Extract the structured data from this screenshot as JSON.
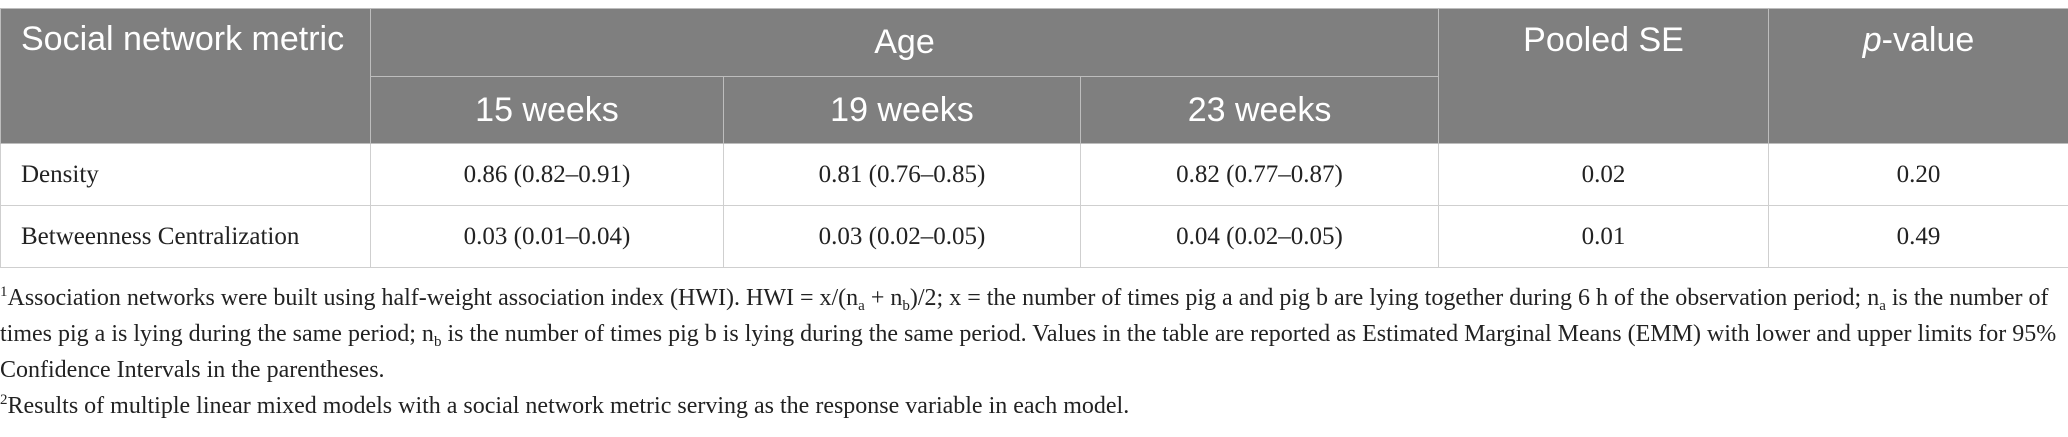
{
  "table": {
    "headers": {
      "metric": "Social network metric",
      "age": "Age",
      "weeks": [
        "15 weeks",
        "19 weeks",
        "23 weeks"
      ],
      "pooled_se": "Pooled SE",
      "pvalue_p": "p",
      "pvalue_rest": "-value"
    },
    "rows": [
      {
        "metric": "Density",
        "w15": "0.86 (0.82–0.91)",
        "w19": "0.81 (0.76–0.85)",
        "w23": "0.82 (0.77–0.87)",
        "se": "0.02",
        "p": "0.20"
      },
      {
        "metric": "Betweenness Centralization",
        "w15": "0.03 (0.01–0.04)",
        "w19": "0.03 (0.02–0.05)",
        "w23": "0.04 (0.02–0.05)",
        "se": "0.01",
        "p": "0.49"
      }
    ]
  },
  "footnotes": {
    "n1": {
      "mark": "1",
      "t1": "Association networks were built using half-weight association index (HWI). HWI = x/(n",
      "a": "a",
      "t2": " + n",
      "b": "b",
      "t3": ")/2; x = the number of times pig a and pig b are lying together during 6 h of the observation period; n",
      "t4": " is the number of times pig a is lying during the same period; n",
      "t5": " is the number of times pig b is lying during the same period. Values in the table are reported as Estimated Marginal Means (EMM) with lower and upper limits for 95% Confidence Intervals in the parentheses."
    },
    "n2": {
      "mark": "2",
      "text": "Results of multiple linear mixed models with a social network metric serving as the response variable in each model."
    }
  }
}
